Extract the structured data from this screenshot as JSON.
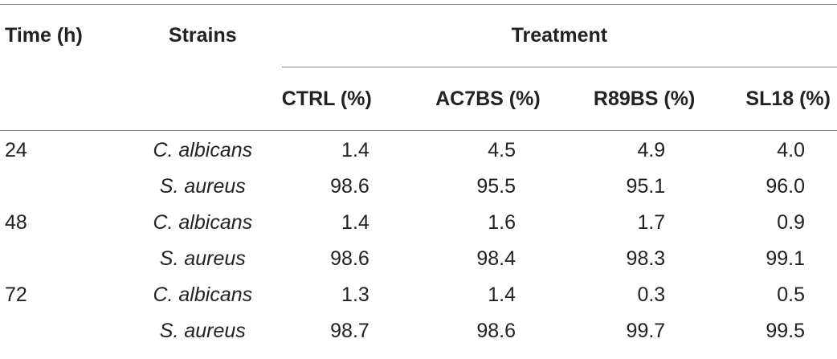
{
  "header": {
    "time": "Time (h)",
    "strains": "Strains",
    "treatment": "Treatment",
    "columns": [
      "CTRL (%)",
      "AC7BS (%)",
      "R89BS (%)",
      "SL18 (%)"
    ]
  },
  "rows": [
    {
      "time": "24",
      "strain": "C. albicans",
      "values": [
        "1.4",
        "4.5",
        "4.9",
        "4.0"
      ]
    },
    {
      "time": "",
      "strain": "S. aureus",
      "values": [
        "98.6",
        "95.5",
        "95.1",
        "96.0"
      ]
    },
    {
      "time": "48",
      "strain": "C. albicans",
      "values": [
        "1.4",
        "1.6",
        "1.7",
        "0.9"
      ]
    },
    {
      "time": "",
      "strain": "S. aureus",
      "values": [
        "98.6",
        "98.4",
        "98.3",
        "99.1"
      ]
    },
    {
      "time": "72",
      "strain": "C. albicans",
      "values": [
        "1.3",
        "1.4",
        "0.3",
        "0.5"
      ]
    },
    {
      "time": "",
      "strain": "S. aureus",
      "values": [
        "98.7",
        "98.6",
        "99.7",
        "99.5"
      ]
    }
  ]
}
